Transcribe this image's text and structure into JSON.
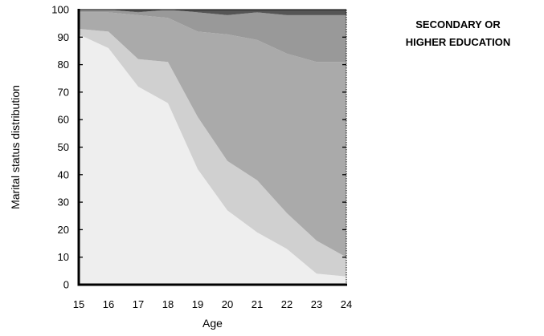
{
  "chart_data": {
    "type": "area",
    "stacked": true,
    "title": [
      "SECONDARY OR",
      "HIGHER EDUCATION"
    ],
    "xlabel": "Age",
    "ylabel": "Marital status distribution",
    "x": [
      15,
      16,
      17,
      18,
      19,
      20,
      21,
      22,
      23,
      24
    ],
    "ylim": [
      0,
      100
    ],
    "yticks": [
      0,
      10,
      20,
      30,
      40,
      50,
      60,
      70,
      80,
      90,
      100
    ],
    "grid": false,
    "series": [
      {
        "values": [
          91,
          86,
          72,
          66,
          42,
          27,
          19,
          13,
          4,
          3
        ],
        "color": "#eeeeee"
      },
      {
        "values": [
          2,
          6,
          10,
          15,
          19,
          18,
          19,
          13,
          12,
          7
        ],
        "color": "#d0d0d0"
      },
      {
        "values": [
          6,
          7,
          16,
          16,
          31,
          46,
          51,
          58,
          65,
          71
        ],
        "color": "#aaaaaa"
      },
      {
        "values": [
          1,
          1,
          1,
          3,
          7,
          7,
          10,
          14,
          17,
          17
        ],
        "color": "#999999"
      },
      {
        "values": [
          0,
          0,
          1,
          0,
          1,
          2,
          1,
          2,
          2,
          2
        ],
        "color": "#555555"
      }
    ]
  }
}
